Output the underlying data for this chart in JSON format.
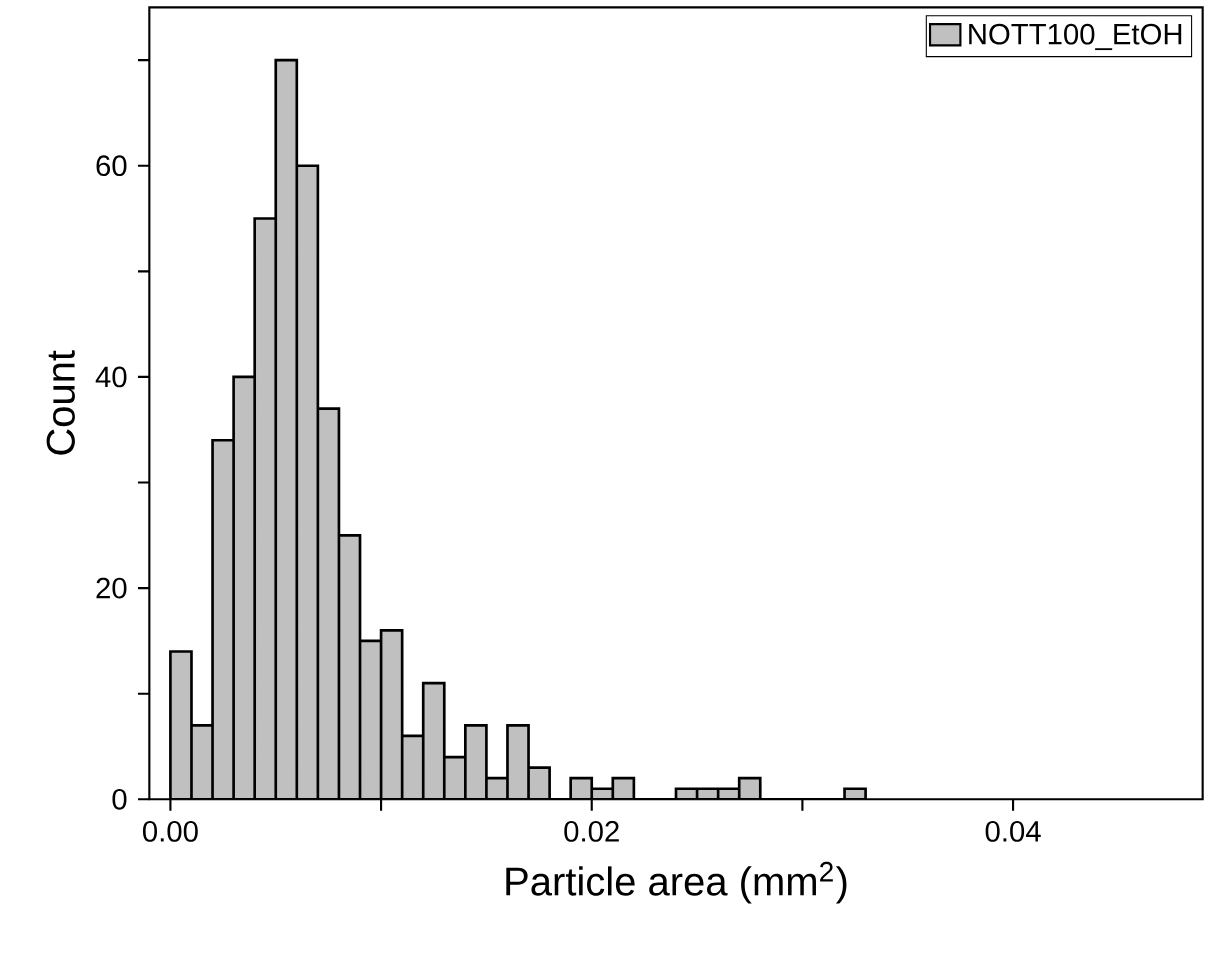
{
  "chart_data": {
    "type": "histogram",
    "xlabel": "Particle area (mm$^{2}$)",
    "ylabel": "Count",
    "bins": [
      0,
      0.001,
      0.002,
      0.003,
      0.004,
      0.005,
      0.006,
      0.007,
      0.008,
      0.009,
      0.01,
      0.011,
      0.012,
      0.013,
      0.014,
      0.015,
      0.016,
      0.017,
      0.018,
      0.019,
      0.02,
      0.021,
      0.022,
      0.023,
      0.024,
      0.025,
      0.026,
      0.027,
      0.028,
      0.029,
      0.03,
      0.031,
      0.032,
      0.033
    ],
    "series": [
      {
        "name": "NOTT100_EtOH",
        "color": "#c0c0c0",
        "values": [
          14,
          7,
          34,
          40,
          55,
          70,
          60,
          37,
          25,
          15,
          16,
          6,
          11,
          4,
          7,
          2,
          7,
          3,
          0,
          2,
          1,
          2,
          0,
          0,
          1,
          1,
          1,
          2,
          0,
          0,
          0,
          0,
          1
        ]
      }
    ],
    "xlim": [
      -0.001,
      0.049
    ],
    "ylim": [
      0,
      75
    ],
    "xticks": [
      {
        "value": 0,
        "label": "0.00"
      },
      {
        "value": 0.01,
        "label": null
      },
      {
        "value": 0.02,
        "label": "0.02"
      },
      {
        "value": 0.03,
        "label": null
      },
      {
        "value": 0.04,
        "label": "0.04"
      }
    ],
    "yticks": [
      0,
      {
        "value": 10,
        "label": null
      },
      20,
      {
        "value": 30,
        "label": null
      },
      40,
      {
        "value": 50,
        "label": null
      },
      60,
      {
        "value": 70,
        "label": null
      }
    ],
    "legend": "top right",
    "grid": false
  }
}
